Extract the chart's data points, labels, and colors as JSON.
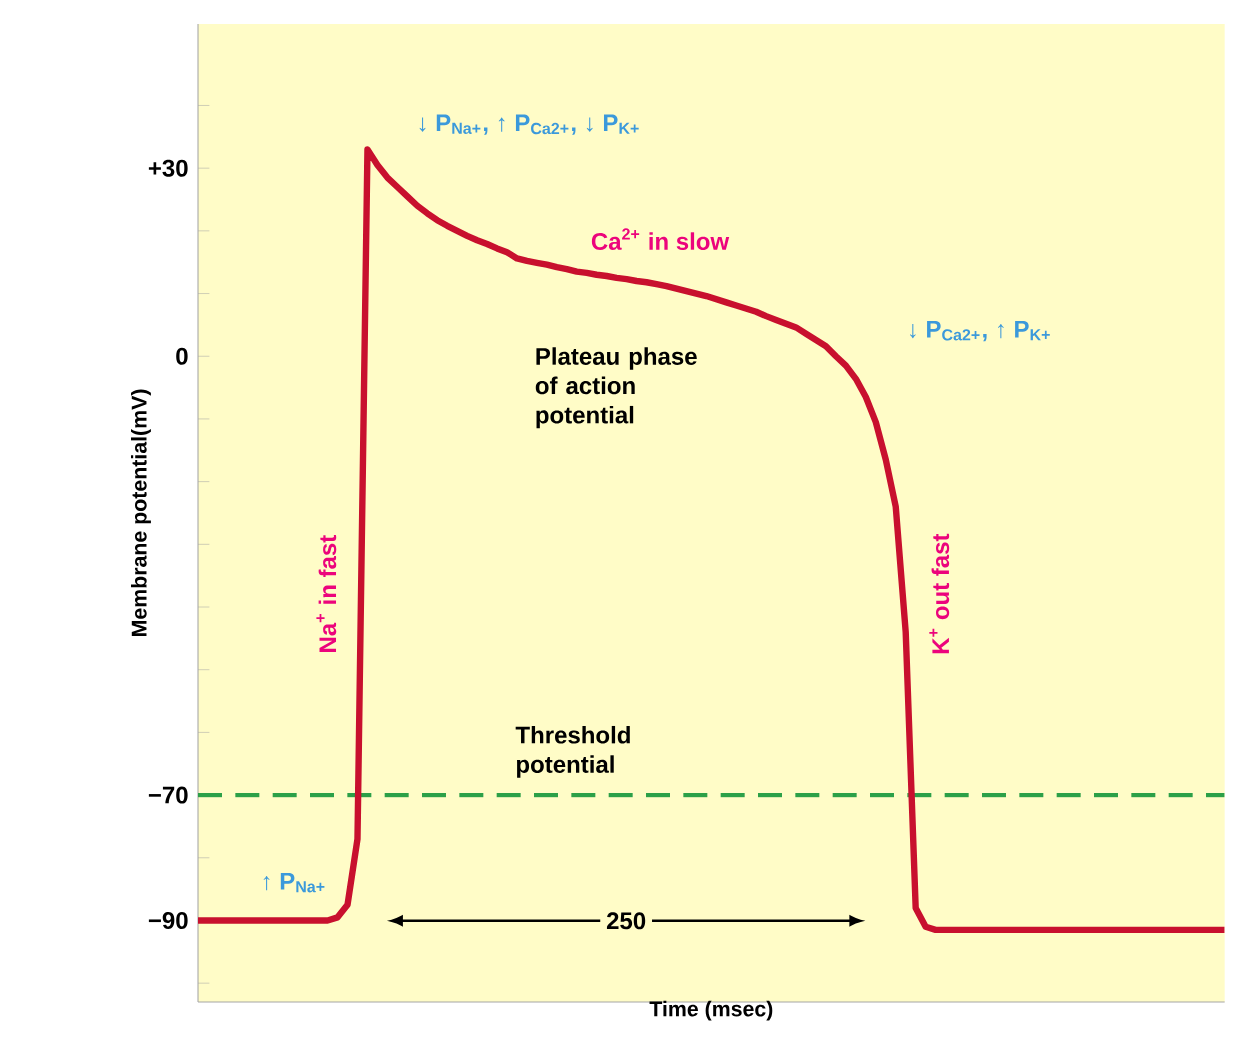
{
  "chart_data": {
    "type": "line",
    "xlabel": "Time (msec)",
    "ylabel": "Membrane potential(mV)",
    "ylim": [
      -103,
      53
    ],
    "tick_labels": "y",
    "yticks": [
      {
        "value": -100,
        "label": null
      },
      {
        "value": -90,
        "label": "−90"
      },
      {
        "value": -80,
        "label": null
      },
      {
        "value": -70,
        "label": "−70"
      },
      {
        "value": -60,
        "label": null
      },
      {
        "value": -50,
        "label": null
      },
      {
        "value": -40,
        "label": null
      },
      {
        "value": -30,
        "label": null
      },
      {
        "value": -20,
        "label": null
      },
      {
        "value": -10,
        "label": null
      },
      0,
      {
        "value": 10,
        "label": null
      },
      {
        "value": 20,
        "label": null
      },
      {
        "value": 30,
        "label": "+30"
      },
      {
        "value": 40,
        "label": null
      }
    ],
    "categories": [
      null,
      null,
      null,
      null,
      null,
      null,
      null,
      null,
      null,
      null,
      null,
      null,
      null,
      null,
      null,
      null,
      null,
      null,
      null,
      null,
      null,
      null,
      null,
      null,
      null,
      null,
      null,
      null,
      null,
      null,
      null,
      null,
      null,
      null,
      null,
      null,
      null,
      null,
      null,
      null,
      null,
      null,
      null,
      null,
      null,
      null,
      null,
      null,
      null,
      null,
      null,
      null,
      null,
      null,
      null,
      null,
      null,
      null,
      null,
      null,
      null,
      null,
      null,
      null,
      null,
      null,
      null,
      null,
      null,
      null,
      null,
      null,
      null,
      null,
      null,
      null,
      null,
      null,
      null,
      null,
      null,
      null,
      null,
      null,
      null,
      null,
      null,
      null,
      null,
      null,
      null,
      null,
      null,
      null,
      null,
      null,
      null,
      null,
      null,
      null,
      null,
      null,
      null,
      null
    ],
    "series": [
      {
        "color": "#c8102e",
        "values": [
          -90,
          -90,
          -90,
          -90,
          -90,
          -90,
          -90,
          -90,
          -90,
          -90,
          -90,
          -90,
          -90,
          -90,
          -89.5,
          -87.5,
          -77,
          33,
          30.5,
          28.5,
          27,
          25.5,
          24,
          22.8,
          21.7,
          20.8,
          20,
          19.2,
          18.5,
          17.9,
          17.2,
          16.6,
          15.6,
          15.2,
          14.9,
          14.6,
          14.2,
          13.9,
          13.5,
          13.3,
          13,
          12.8,
          12.5,
          12.3,
          12,
          11.8,
          11.5,
          11.2,
          10.8,
          10.4,
          10,
          9.6,
          9.1,
          8.6,
          8.1,
          7.6,
          7.1,
          6.4,
          5.8,
          5.2,
          4.6,
          3.6,
          2.6,
          1.6,
          0,
          -1.5,
          -3.6,
          -6.5,
          -10.5,
          -16.5,
          -24,
          -44,
          -88,
          -91,
          -91.5,
          -91.5,
          -91.5,
          -91.5,
          -91.5,
          -91.5,
          -91.5,
          -91.5,
          -91.5,
          -91.5,
          -91.5,
          -91.5,
          -91.5,
          -91.5,
          -91.5,
          -91.5,
          -91.5,
          -91.5,
          -91.5,
          -91.5,
          -91.5,
          -91.5,
          -91.5,
          -91.5,
          -91.5,
          -91.5,
          -91.5,
          -91.5,
          -91.5,
          -91.5
        ]
      }
    ],
    "ref_lines": [
      {
        "axis": "y",
        "value": -70,
        "label": "Threshold potential",
        "color": "#2ca048",
        "line_style": "dashed"
      }
    ],
    "annotations": [
      "↓ P$_{Na+}$, ↑ P$_{Ca2+}$, ↓ P$_{K+}$",
      "Ca$^{2+}$ in slow",
      "Plateau phase of action potential",
      "↓ P$_{Ca2+}$, ↑ P$_{K+}$",
      "Na$^{+}$ in fast",
      "K$^{+}$ out fast",
      "↑ P$_{Na+}$",
      "250"
    ]
  }
}
